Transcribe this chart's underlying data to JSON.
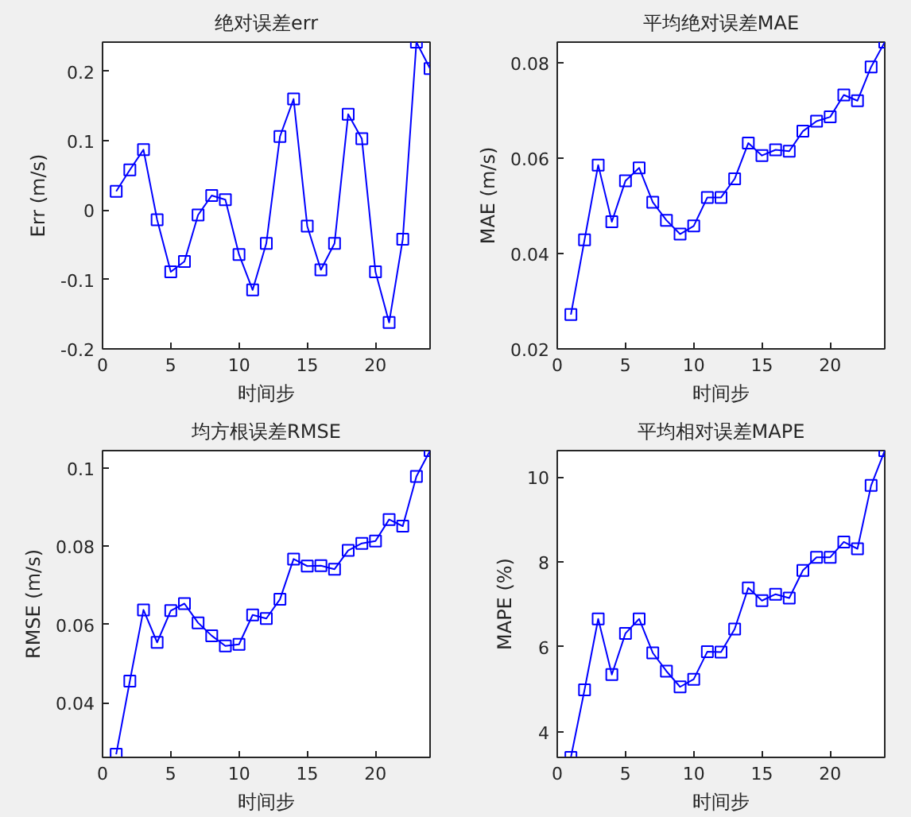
{
  "chart_data": [
    {
      "type": "line",
      "title": "绝对误差err",
      "xlabel": "时间步",
      "ylabel": "Err (m/s)",
      "x": [
        1,
        2,
        3,
        4,
        5,
        6,
        7,
        8,
        9,
        10,
        11,
        12,
        13,
        14,
        15,
        16,
        17,
        18,
        19,
        20,
        21,
        22,
        23,
        24
      ],
      "series": [
        {
          "color": "#0000ff",
          "values": [
            0.027,
            0.058,
            0.087,
            -0.014,
            -0.089,
            -0.074,
            -0.007,
            0.021,
            0.015,
            -0.064,
            -0.115,
            -0.048,
            0.106,
            0.16,
            -0.023,
            -0.086,
            -0.048,
            0.138,
            0.103,
            -0.089,
            -0.162,
            -0.042,
            0.242,
            0.204
          ]
        }
      ],
      "xlim": [
        0,
        24
      ],
      "xticks": [
        0,
        5,
        10,
        15,
        20
      ],
      "ylim": [
        -0.2,
        0.242
      ],
      "yticks": [
        -0.2,
        -0.1,
        0,
        0.1,
        0.2
      ],
      "marker": "square",
      "line_style": "solid"
    },
    {
      "type": "line",
      "title": "平均绝对误差MAE",
      "xlabel": "时间步",
      "ylabel": "MAE (m/s)",
      "x": [
        1,
        2,
        3,
        4,
        5,
        6,
        7,
        8,
        9,
        10,
        11,
        12,
        13,
        14,
        15,
        16,
        17,
        18,
        19,
        20,
        21,
        22,
        23,
        24
      ],
      "series": [
        {
          "color": "#0000ff",
          "values": [
            0.0272,
            0.0429,
            0.0586,
            0.0467,
            0.0553,
            0.058,
            0.0508,
            0.047,
            0.0441,
            0.0458,
            0.0518,
            0.0518,
            0.0557,
            0.0632,
            0.0606,
            0.0618,
            0.0615,
            0.0657,
            0.0678,
            0.0687,
            0.0733,
            0.0721,
            0.0792,
            0.0844
          ]
        }
      ],
      "xlim": [
        0,
        24
      ],
      "xticks": [
        0,
        5,
        10,
        15,
        20
      ],
      "ylim": [
        0.02,
        0.0844
      ],
      "yticks": [
        0.02,
        0.04,
        0.06,
        0.08
      ],
      "marker": "square",
      "line_style": "solid"
    },
    {
      "type": "line",
      "title": "均方根误差RMSE",
      "xlabel": "时间步",
      "ylabel": "RMSE (m/s)",
      "x": [
        1,
        2,
        3,
        4,
        5,
        6,
        7,
        8,
        9,
        10,
        11,
        12,
        13,
        14,
        15,
        16,
        17,
        18,
        19,
        20,
        21,
        22,
        23,
        24
      ],
      "series": [
        {
          "color": "#0000ff",
          "values": [
            0.0268,
            0.0455,
            0.0637,
            0.0554,
            0.0635,
            0.0653,
            0.0604,
            0.0571,
            0.0545,
            0.0549,
            0.0624,
            0.0615,
            0.0664,
            0.0767,
            0.0749,
            0.075,
            0.0741,
            0.0789,
            0.0807,
            0.0813,
            0.0868,
            0.0851,
            0.0978,
            0.1044
          ]
        }
      ],
      "xlim": [
        0,
        24
      ],
      "xticks": [
        0,
        5,
        10,
        15,
        20
      ],
      "ylim": [
        0.026,
        0.1044
      ],
      "yticks": [
        0.04,
        0.06,
        0.08,
        0.1
      ],
      "marker": "square",
      "line_style": "solid"
    },
    {
      "type": "line",
      "title": "平均相对误差MAPE",
      "xlabel": "时间步",
      "ylabel": "MAPE (%)",
      "x": [
        1,
        2,
        3,
        4,
        5,
        6,
        7,
        8,
        9,
        10,
        11,
        12,
        13,
        14,
        15,
        16,
        17,
        18,
        19,
        20,
        21,
        22,
        23,
        24
      ],
      "series": [
        {
          "color": "#0000ff",
          "values": [
            3.4,
            4.99,
            6.66,
            5.35,
            6.32,
            6.66,
            5.86,
            5.43,
            5.06,
            5.24,
            5.89,
            5.88,
            6.42,
            7.39,
            7.09,
            7.24,
            7.15,
            7.8,
            8.11,
            8.11,
            8.47,
            8.31,
            9.8,
            10.62
          ]
        }
      ],
      "xlim": [
        0,
        24
      ],
      "xticks": [
        0,
        5,
        10,
        15,
        20
      ],
      "ylim": [
        3.4,
        10.62
      ],
      "yticks": [
        4,
        6,
        8,
        10
      ],
      "marker": "square",
      "line_style": "solid"
    }
  ]
}
